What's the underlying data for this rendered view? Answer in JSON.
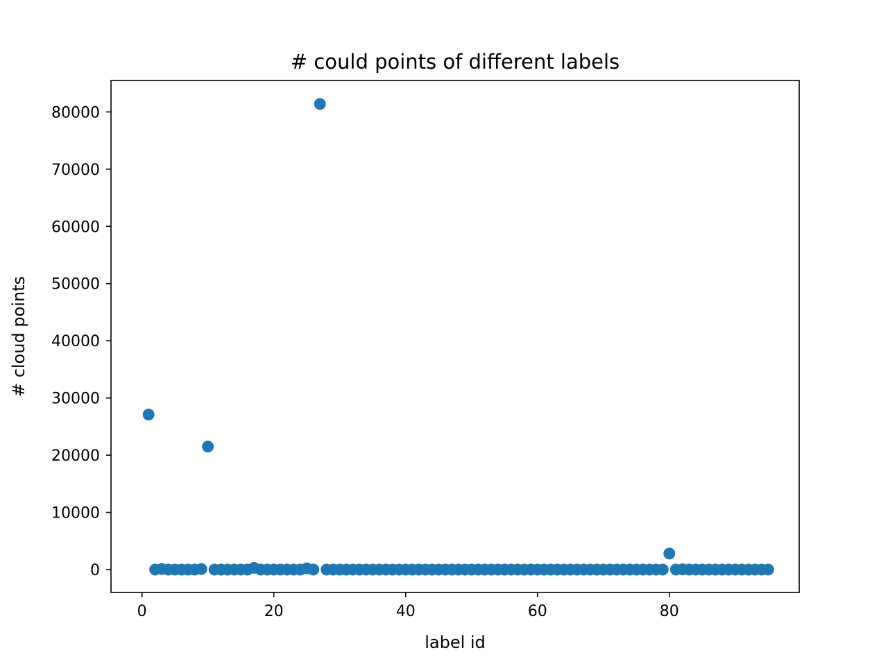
{
  "chart_data": {
    "type": "scatter",
    "title": "# could points of different labels",
    "xlabel": "label id",
    "ylabel": "# cloud points",
    "xlim": [
      -4.7,
      99.7
    ],
    "ylim": [
      -4000,
      85500
    ],
    "x_ticks": [
      0,
      20,
      40,
      60,
      80
    ],
    "y_ticks": [
      0,
      10000,
      20000,
      30000,
      40000,
      50000,
      60000,
      70000,
      80000
    ],
    "grid": false,
    "legend": "none",
    "marker_color": "#1f77b4",
    "x": [
      1,
      2,
      3,
      4,
      5,
      6,
      7,
      8,
      9,
      10,
      11,
      12,
      13,
      14,
      15,
      16,
      17,
      18,
      19,
      20,
      21,
      22,
      23,
      24,
      25,
      26,
      27,
      28,
      29,
      30,
      31,
      32,
      33,
      34,
      35,
      36,
      37,
      38,
      39,
      40,
      41,
      42,
      43,
      44,
      45,
      46,
      47,
      48,
      49,
      50,
      51,
      52,
      53,
      54,
      55,
      56,
      57,
      58,
      59,
      60,
      61,
      62,
      63,
      64,
      65,
      66,
      67,
      68,
      69,
      70,
      71,
      72,
      73,
      74,
      75,
      76,
      77,
      78,
      79,
      80,
      81,
      82,
      83,
      84,
      85,
      86,
      87,
      88,
      89,
      90,
      91,
      92,
      93,
      94,
      95
    ],
    "y": [
      27100,
      0,
      100,
      0,
      0,
      0,
      0,
      0,
      100,
      21500,
      0,
      0,
      0,
      0,
      0,
      0,
      300,
      0,
      0,
      0,
      0,
      0,
      0,
      0,
      200,
      0,
      81400,
      0,
      0,
      0,
      0,
      0,
      0,
      0,
      0,
      0,
      0,
      0,
      0,
      0,
      0,
      0,
      0,
      0,
      0,
      0,
      0,
      0,
      0,
      0,
      0,
      0,
      0,
      0,
      0,
      0,
      0,
      0,
      0,
      0,
      0,
      0,
      0,
      0,
      0,
      0,
      0,
      0,
      0,
      0,
      0,
      0,
      0,
      0,
      0,
      0,
      0,
      0,
      0,
      2800,
      0,
      50,
      0,
      0,
      0,
      0,
      0,
      0,
      0,
      0,
      0,
      0,
      0,
      0,
      0
    ]
  }
}
